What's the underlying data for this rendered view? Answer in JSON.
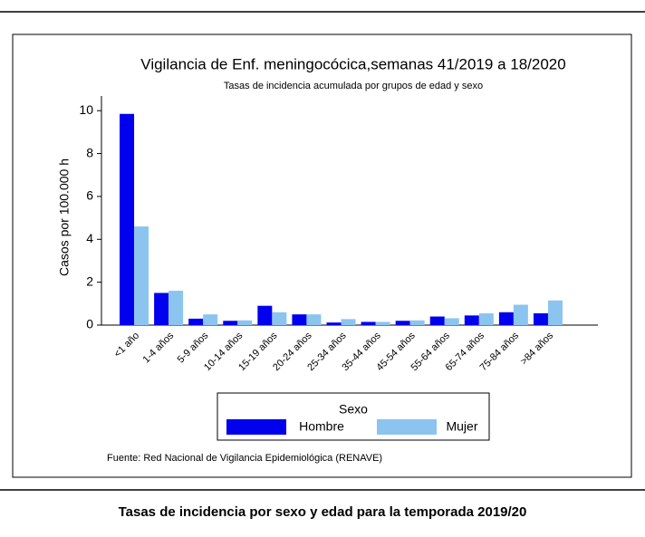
{
  "chart_data": {
    "type": "bar",
    "title": "Vigilancia de Enf. meningocócica,semanas 41/2019 a 18/2020",
    "subtitle": "Tasas de incidencia acumulada por grupos de edad y sexo",
    "y_label": "Casos por 100.000 h",
    "categories": [
      "<1 año",
      "1-4 años",
      "5-9 años",
      "10-14 años",
      "15-19 años",
      "20-24 años",
      "25-34 años",
      "35-44 años",
      "45-54 años",
      "55-64 años",
      "65-74 años",
      "75-84 años",
      ">84 años"
    ],
    "series": [
      {
        "name": "Hombre",
        "color": "#0000ee",
        "values": [
          9.85,
          1.5,
          0.3,
          0.2,
          0.9,
          0.5,
          0.12,
          0.15,
          0.2,
          0.4,
          0.45,
          0.6,
          0.55
        ]
      },
      {
        "name": "Mujer",
        "color": "#8cc4f0",
        "values": [
          4.6,
          1.6,
          0.5,
          0.22,
          0.6,
          0.5,
          0.28,
          0.15,
          0.22,
          0.32,
          0.55,
          0.95,
          1.15
        ]
      }
    ],
    "ylim": [
      0,
      10.6
    ],
    "yticks": [
      0,
      2,
      4,
      6,
      8,
      10
    ],
    "legend_title": "Sexo",
    "source": "Fuente: Red Nacional de Vigilancia Epidemiológica (RENAVE)"
  },
  "caption": "Tasas de incidencia por sexo y edad para la temporada 2019/20"
}
